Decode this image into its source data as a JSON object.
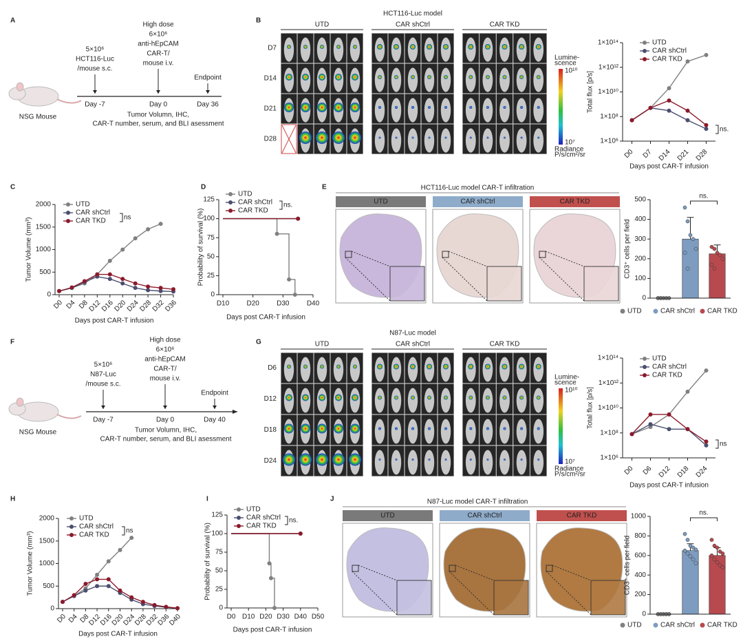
{
  "panel_letters": [
    "A",
    "B",
    "C",
    "D",
    "E",
    "F",
    "G",
    "H",
    "I",
    "J"
  ],
  "schematic_A": {
    "dose1": "5×10⁶",
    "cell": "HCT116-Luc",
    "route1": "/mouse s.c.",
    "high": "High dose",
    "dose2": "6×10⁶",
    "cart1": "anti-hEpCAM",
    "cart2": "CAR-T/",
    "route2": "mouse i.v.",
    "endpoint": "Endpoint",
    "days": [
      "Day -7",
      "Day 0",
      "Day 36"
    ],
    "mouse": "NSG Mouse",
    "readout1": "Tumor Volumn, IHC,",
    "readout2": "CAR-T number, serum, and BLI asessment"
  },
  "imaging_B": {
    "title": "HCT116-Luc model",
    "groups": [
      "UTD",
      "CAR shCtrl",
      "CAR TKD"
    ],
    "rows": [
      "D7",
      "D14",
      "D21",
      "D28"
    ],
    "scale1": "Lumine-",
    "scale2": "scence",
    "scale_max": "10¹⁰",
    "scale_min": "10⁷",
    "unit1": "Radiance",
    "unit2": "P/s/cm²/sr"
  },
  "histology_E": {
    "title": "HCT116-Luc model CAR-T infiltration",
    "groups": [
      "UTD",
      "CAR shCtrl",
      "CAR TKD"
    ]
  },
  "schematic_F": {
    "dose1": "5×10⁶",
    "cell": "N87-Luc",
    "route1": "/mouse s.c.",
    "high": "High dose",
    "dose2": "6×10⁶",
    "cart1": "anti-hEpCAM",
    "cart2": "CAR-T/",
    "route2": "mouse i.v.",
    "endpoint": "Endpoint",
    "days": [
      "Day -7",
      "Day 0",
      "Day 40"
    ],
    "mouse": "NSG Mouse",
    "readout1": "Tumor Volumn, IHC,",
    "readout2": "CAR-T number, serum, and BLI asessment"
  },
  "imaging_G": {
    "title": "N87-Luc model",
    "groups": [
      "UTD",
      "CAR shCtrl",
      "CAR TKD"
    ],
    "rows": [
      "D6",
      "D12",
      "D18",
      "D24"
    ],
    "scale1": "Lumine-",
    "scale2": "scence",
    "scale_max": "10¹⁰",
    "scale_min": "10⁷",
    "unit1": "Radiance",
    "unit2": "P/s/cm²/sr"
  },
  "histology_J": {
    "title": "N87-Luc model CAR-T infiltration",
    "groups": [
      "UTD",
      "CAR shCtrl",
      "CAR TKD"
    ]
  },
  "chart_data": [
    {
      "type": "line",
      "xlabel": "Days post CAR-T infusion",
      "ylabel": "Total flux [p/s]",
      "categories": [
        "D0",
        "D7",
        "D14",
        "D21",
        "D28"
      ],
      "yscale": "log",
      "ylim": [
        1000000.0,
        100000000000000.0
      ],
      "yticks": [
        {
          "value": 1000000.0,
          "label": "1×10⁶"
        },
        {
          "value": 100000000.0,
          "label": "1×10⁸"
        },
        {
          "value": 10000000000.0,
          "label": "1×10¹⁰"
        },
        {
          "value": 1000000000000.0,
          "label": "1×10¹²"
        },
        {
          "value": 100000000000000.0,
          "label": "1×10¹⁴"
        }
      ],
      "legend": "upper right",
      "annotation": "ns.",
      "series": [
        {
          "name": "UTD",
          "color": "#808080",
          "values": [
            50000000.0,
            500000000.0,
            20000000000.0,
            3000000000000.0,
            10000000000000.0
          ]
        },
        {
          "name": "CAR shCtrl",
          "color": "#4a4e6e",
          "values": [
            50000000.0,
            500000000.0,
            300000000.0,
            50000000.0,
            10000000.0
          ]
        },
        {
          "name": "CAR TKD",
          "color": "#8b1a2b",
          "values": [
            50000000.0,
            500000000.0,
            2000000000.0,
            300000000.0,
            20000000.0
          ]
        }
      ]
    },
    {
      "type": "line",
      "xlabel": "Days post CAR-T infusion",
      "ylabel": "Tumor Volume (mm³)",
      "x": [
        0,
        4,
        8,
        12,
        16,
        20,
        24,
        28,
        32,
        36
      ],
      "xlim": [
        0,
        36
      ],
      "xticks": [
        {
          "value": 0,
          "label": "D0"
        },
        {
          "value": 4,
          "label": "D4"
        },
        {
          "value": 8,
          "label": "D8"
        },
        {
          "value": 12,
          "label": "D12"
        },
        {
          "value": 16,
          "label": "D16"
        },
        {
          "value": 20,
          "label": "D20"
        },
        {
          "value": 24,
          "label": "D24"
        },
        {
          "value": 28,
          "label": "D28"
        },
        {
          "value": 32,
          "label": "D32"
        },
        {
          "value": 36,
          "label": "D36"
        }
      ],
      "ylim": [
        0,
        2000
      ],
      "yticks": [
        0,
        500,
        1000,
        1500,
        2000
      ],
      "legend": "upper left",
      "annotation": "ns",
      "series": [
        {
          "name": "UTD",
          "color": "#808080",
          "values": [
            80,
            150,
            250,
            450,
            750,
            1000,
            1250,
            1450,
            1570,
            null
          ]
        },
        {
          "name": "CAR shCtrl",
          "color": "#4a4e6e",
          "values": [
            80,
            150,
            280,
            400,
            350,
            250,
            150,
            100,
            80,
            70
          ]
        },
        {
          "name": "CAR TKD",
          "color": "#8b1a2b",
          "values": [
            80,
            160,
            300,
            450,
            450,
            350,
            250,
            180,
            150,
            120
          ]
        }
      ]
    },
    {
      "type": "step",
      "xlabel": "Days post CAR-T infusion",
      "ylabel": "Probability of survival (%)",
      "xlim": [
        10,
        40
      ],
      "xticks": [
        {
          "value": 10,
          "label": "D10"
        },
        {
          "value": 20,
          "label": "D20"
        },
        {
          "value": 30,
          "label": "D30"
        },
        {
          "value": 40,
          "label": "D40"
        }
      ],
      "ylim": [
        0,
        125
      ],
      "yticks": [
        0,
        25,
        50,
        75,
        100,
        125
      ],
      "legend": "upper left",
      "annotation": "ns.",
      "series": [
        {
          "name": "UTD",
          "color": "#808080",
          "x": [
            10,
            28,
            32,
            34
          ],
          "values": [
            100,
            80,
            20,
            0
          ]
        },
        {
          "name": "CAR shCtrl",
          "color": "#4a4e6e",
          "x": [
            10,
            35
          ],
          "values": [
            100,
            100
          ]
        },
        {
          "name": "CAR TKD",
          "color": "#8b1a2b",
          "x": [
            10,
            35
          ],
          "values": [
            100,
            100
          ]
        }
      ]
    },
    {
      "type": "bar",
      "ylabel": "CD3⁺ cells per field",
      "categories": [
        "UTD",
        "CAR shCtrl",
        "CAR TKD"
      ],
      "values": [
        0,
        300,
        225
      ],
      "errors": [
        0,
        110,
        45
      ],
      "colors": [
        "#808080",
        "#7d9cc0",
        "#b84a4f"
      ],
      "points": [
        [
          0,
          0,
          0,
          0,
          0,
          0,
          0
        ],
        [
          460,
          390,
          320,
          300,
          250,
          230,
          150
        ],
        [
          260,
          250,
          230,
          220,
          200,
          170,
          150
        ]
      ],
      "ylim": [
        0,
        500
      ],
      "yticks": [
        0,
        100,
        200,
        300,
        400,
        500
      ],
      "legend": "bottom",
      "annotation": "ns."
    },
    {
      "type": "line",
      "xlabel": "Days post CAR-T infusion",
      "ylabel": "Total flux [p/s]",
      "categories": [
        "D0",
        "D6",
        "D12",
        "D18",
        "D24"
      ],
      "yscale": "log",
      "ylim": [
        1000000.0,
        100000000000000.0
      ],
      "yticks": [
        {
          "value": 1000000.0,
          "label": "1×10⁶"
        },
        {
          "value": 100000000.0,
          "label": "1×10⁸"
        },
        {
          "value": 10000000000.0,
          "label": "1×10¹⁰"
        },
        {
          "value": 1000000000000.0,
          "label": "1×10¹²"
        },
        {
          "value": 100000000000000.0,
          "label": "1×10¹⁴"
        }
      ],
      "legend": "upper right",
      "annotation": "ns",
      "series": [
        {
          "name": "UTD",
          "color": "#808080",
          "values": [
            80000000.0,
            300000000.0,
            3000000000.0,
            200000000000.0,
            10000000000000.0
          ]
        },
        {
          "name": "CAR shCtrl",
          "color": "#4a4e6e",
          "values": [
            80000000.0,
            500000000.0,
            200000000.0,
            200000000.0,
            10000000.0
          ]
        },
        {
          "name": "CAR TKD",
          "color": "#8b1a2b",
          "values": [
            80000000.0,
            3000000000.0,
            3000000000.0,
            200000000.0,
            20000000.0
          ]
        }
      ]
    },
    {
      "type": "line",
      "xlabel": "Days post CAR-T infusion",
      "ylabel": "Tumor Volume (mm³)",
      "x": [
        0,
        4,
        8,
        12,
        16,
        20,
        24,
        28,
        32,
        36,
        40
      ],
      "xlim": [
        0,
        40
      ],
      "xticks": [
        {
          "value": 0,
          "label": "D0"
        },
        {
          "value": 4,
          "label": "D4"
        },
        {
          "value": 8,
          "label": "D8"
        },
        {
          "value": 12,
          "label": "D12"
        },
        {
          "value": 16,
          "label": "D16"
        },
        {
          "value": 20,
          "label": "D20"
        },
        {
          "value": 24,
          "label": "D24"
        },
        {
          "value": 28,
          "label": "D28"
        },
        {
          "value": 32,
          "label": "D32"
        },
        {
          "value": 36,
          "label": "D36"
        },
        {
          "value": 40,
          "label": "D40"
        }
      ],
      "ylim": [
        0,
        2000
      ],
      "yticks": [
        0,
        500,
        1000,
        1500,
        2000
      ],
      "legend": "upper left",
      "annotation": "ns",
      "series": [
        {
          "name": "UTD",
          "color": "#808080",
          "values": [
            150,
            280,
            450,
            750,
            1050,
            1300,
            1570,
            null,
            null,
            null,
            null
          ]
        },
        {
          "name": "CAR shCtrl",
          "color": "#4a4e6e",
          "values": [
            150,
            280,
            400,
            500,
            500,
            350,
            200,
            100,
            60,
            30,
            10
          ]
        },
        {
          "name": "CAR TKD",
          "color": "#8b1a2b",
          "values": [
            150,
            300,
            550,
            650,
            650,
            400,
            250,
            150,
            80,
            40,
            10
          ]
        }
      ]
    },
    {
      "type": "step",
      "xlabel": "Days post CAR-T infusion",
      "ylabel": "Probability of survival (%)",
      "xlim": [
        0,
        50
      ],
      "xticks": [
        {
          "value": 0,
          "label": "D0"
        },
        {
          "value": 10,
          "label": "D10"
        },
        {
          "value": 20,
          "label": "D20"
        },
        {
          "value": 30,
          "label": "D30"
        },
        {
          "value": 40,
          "label": "D40"
        },
        {
          "value": 50,
          "label": "D50"
        }
      ],
      "ylim": [
        0,
        125
      ],
      "yticks": [
        0,
        25,
        50,
        75,
        100,
        125
      ],
      "legend": "upper left",
      "annotation": "ns.",
      "series": [
        {
          "name": "UTD",
          "color": "#808080",
          "x": [
            0,
            22,
            23,
            25
          ],
          "values": [
            100,
            60,
            40,
            0
          ]
        },
        {
          "name": "CAR shCtrl",
          "color": "#4a4e6e",
          "x": [
            0,
            40
          ],
          "values": [
            100,
            100
          ]
        },
        {
          "name": "CAR TKD",
          "color": "#8b1a2b",
          "x": [
            0,
            40
          ],
          "values": [
            100,
            100
          ]
        }
      ]
    },
    {
      "type": "bar",
      "ylabel": "CD3⁺ cells per field",
      "categories": [
        "UTD",
        "CAR shCtrl",
        "CAR TKD"
      ],
      "values": [
        0,
        650,
        600
      ],
      "errors": [
        0,
        70,
        80
      ],
      "colors": [
        "#808080",
        "#7d9cc0",
        "#b84a4f"
      ],
      "points": [
        [
          0,
          0,
          0,
          0,
          0,
          0,
          0,
          0,
          0,
          0
        ],
        [
          820,
          760,
          700,
          680,
          660,
          650,
          620,
          590,
          560,
          520
        ],
        [
          760,
          700,
          680,
          640,
          620,
          600,
          560,
          530,
          500,
          480
        ]
      ],
      "ylim": [
        0,
        1000
      ],
      "yticks": [
        0,
        200,
        400,
        600,
        800,
        1000
      ],
      "legend": "bottom",
      "annotation": "ns."
    }
  ]
}
